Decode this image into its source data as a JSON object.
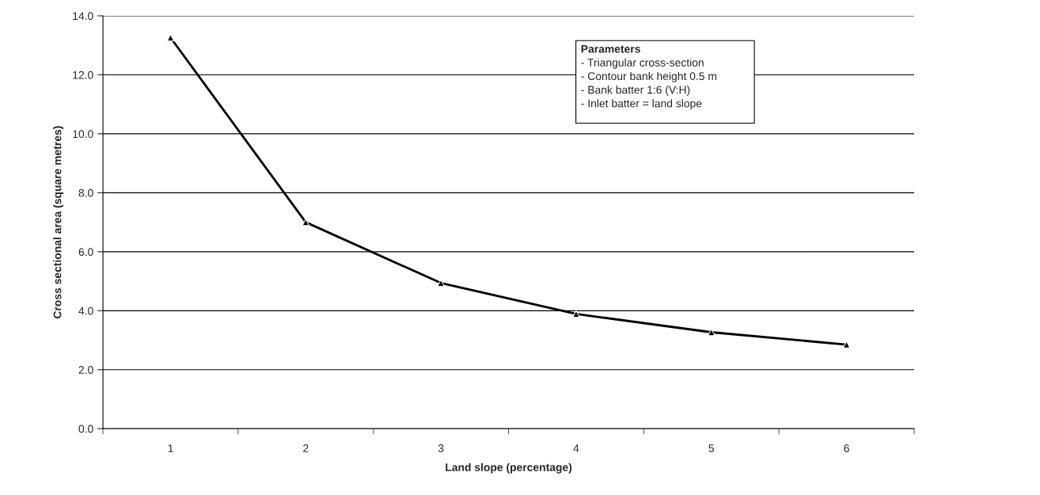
{
  "chart_data": {
    "type": "line",
    "xlabel": "Land slope (percentage)",
    "ylabel": "Cross sectional area (square metres)",
    "categories": [
      "1",
      "2",
      "3",
      "4",
      "5",
      "6"
    ],
    "series": [
      {
        "color": "#000000",
        "values": [
          13.26,
          7.0,
          4.94,
          3.89,
          3.27,
          2.85
        ]
      }
    ],
    "ylim": [
      0,
      14
    ],
    "yticks": [
      {
        "value": 0,
        "label": "0.0"
      },
      {
        "value": 2,
        "label": "2.0"
      },
      {
        "value": 4,
        "label": "4.0"
      },
      {
        "value": 6,
        "label": "6.0"
      },
      {
        "value": 8,
        "label": "8.0"
      },
      {
        "value": 10,
        "label": "10.0"
      },
      {
        "value": 12,
        "label": "12.0"
      },
      {
        "value": 14,
        "label": "14.0"
      }
    ],
    "grid": "y",
    "marker": "triangle",
    "line_style": "solid",
    "annotations": [
      "Parameters",
      "- Triangular cross-section",
      "- Contour bank height 0.5 m",
      "- Bank batter 1:6 (V:H)",
      "- Inlet batter = land slope"
    ]
  }
}
